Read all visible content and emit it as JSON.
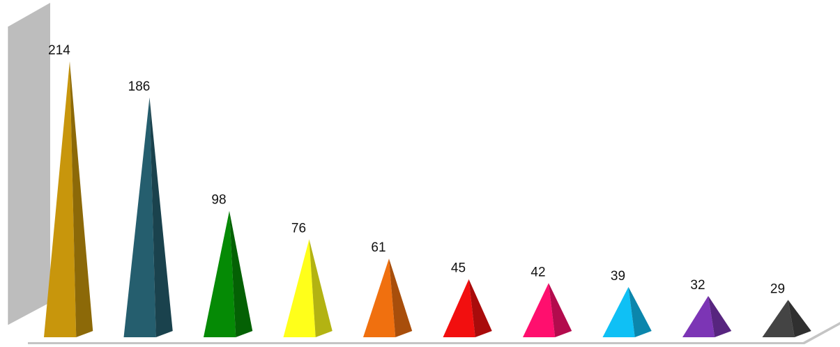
{
  "chart_data": {
    "type": "bar",
    "bar_shape": "pyramid-3d",
    "categories": [],
    "values": [
      214,
      186,
      98,
      76,
      61,
      45,
      42,
      39,
      32,
      29
    ],
    "labels": [
      "214",
      "186",
      "98",
      "76",
      "61",
      "45",
      "42",
      "39",
      "32",
      "29"
    ],
    "colors": [
      "#C8960C",
      "#255E6E",
      "#058A05",
      "#FFFF1A",
      "#F0700F",
      "#F20F0F",
      "#FF0F6E",
      "#0FC0F5",
      "#7C35B5",
      "#444444"
    ],
    "title": "",
    "xlabel": "",
    "ylabel": "",
    "ylim": [
      0,
      214
    ],
    "grid": false,
    "legend": "none",
    "data_labels": true
  }
}
